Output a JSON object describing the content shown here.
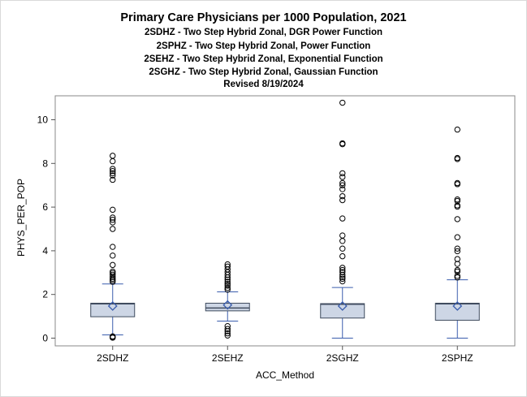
{
  "chart_data": {
    "type": "boxplot",
    "title": "Primary Care Physicians per 1000 Population, 2021",
    "subtitles": [
      "2SDHZ - Two Step Hybrid Zonal, DGR Power Function",
      "2SPHZ - Two Step Hybrid Zonal, Power Function",
      "2SEHZ - Two Step Hybrid Zonal, Exponential Function",
      "2SGHZ - Two Step Hybrid Zonal, Gaussian Function",
      "Revised 8/19/2024"
    ],
    "xlabel": "ACC_Method",
    "ylabel": "PHYS_PER_POP",
    "ylim": [
      -0.4,
      11.0
    ],
    "yticks": [
      0,
      2,
      4,
      6,
      8,
      10
    ],
    "grid": false,
    "categories": [
      "2SDHZ",
      "2SEHZ",
      "2SGHZ",
      "2SPHZ"
    ],
    "boxes": [
      {
        "category": "2SDHZ",
        "whisker_low": 0.15,
        "q1": 0.98,
        "median": 1.57,
        "q3": 1.6,
        "whisker_high": 2.48,
        "mean": 1.47,
        "outliers": [
          0.02,
          0.05,
          0.08,
          2.58,
          2.65,
          2.72,
          2.8,
          2.9,
          2.98,
          3.05,
          3.35,
          3.78,
          4.18,
          5.0,
          5.3,
          5.42,
          5.52,
          5.88,
          7.25,
          7.45,
          7.55,
          7.65,
          7.75,
          8.1,
          8.35
        ]
      },
      {
        "category": "2SEHZ",
        "whisker_low": 0.78,
        "q1": 1.25,
        "median": 1.38,
        "q3": 1.6,
        "whisker_high": 2.12,
        "mean": 1.52,
        "outliers": [
          0.12,
          0.22,
          0.32,
          0.42,
          0.55,
          2.22,
          2.3,
          2.4,
          2.48,
          2.58,
          2.68,
          2.78,
          2.9,
          3.02,
          3.15,
          3.28,
          3.38
        ]
      },
      {
        "category": "2SGHZ",
        "whisker_low": 0.0,
        "q1": 0.92,
        "median": 1.55,
        "q3": 1.58,
        "whisker_high": 2.32,
        "mean": 1.47,
        "outliers": [
          2.6,
          2.72,
          2.8,
          2.9,
          3.02,
          3.12,
          3.22,
          3.75,
          4.1,
          4.45,
          4.7,
          5.48,
          6.32,
          6.5,
          6.82,
          7.0,
          7.1,
          7.38,
          7.55,
          8.88,
          8.92,
          10.78
        ]
      },
      {
        "category": "2SPHZ",
        "whisker_low": 0.0,
        "q1": 0.82,
        "median": 1.57,
        "q3": 1.6,
        "whisker_high": 2.67,
        "mean": 1.47,
        "outliers": [
          2.78,
          2.85,
          3.05,
          3.12,
          3.4,
          3.62,
          3.98,
          4.1,
          4.62,
          5.45,
          6.02,
          6.08,
          6.28,
          6.35,
          7.05,
          7.1,
          8.2,
          8.25,
          9.55
        ]
      }
    ],
    "colors": {
      "box_fill": "#cdd6e5",
      "box_stroke": "#3f4b5e",
      "whisker": "#3a5dad",
      "mean_marker": "#3a5dad",
      "outlier": "#000000",
      "axis_frame": "#888888"
    }
  }
}
